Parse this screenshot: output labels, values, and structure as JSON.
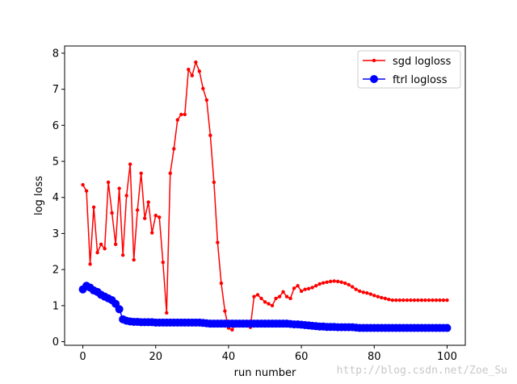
{
  "chart_data": {
    "type": "line",
    "xlabel": "run number",
    "ylabel": "log loss",
    "xlim": [
      -5,
      105
    ],
    "ylim": [
      -0.1,
      8.2
    ],
    "xticks": [
      0,
      20,
      40,
      60,
      80,
      100
    ],
    "yticks": [
      0,
      1,
      2,
      3,
      4,
      5,
      6,
      7,
      8
    ],
    "grid": false,
    "legend_position": "top-right",
    "series": [
      {
        "name": "sgd logloss",
        "color": "#ff0000",
        "marker": "small-dot",
        "x": [
          0,
          1,
          2,
          3,
          4,
          5,
          6,
          7,
          8,
          9,
          10,
          11,
          12,
          13,
          14,
          15,
          16,
          17,
          18,
          19,
          20,
          21,
          22,
          23,
          24,
          25,
          26,
          27,
          28,
          29,
          30,
          31,
          32,
          33,
          34,
          35,
          36,
          37,
          38,
          39,
          40,
          41,
          42,
          43,
          44,
          45,
          46,
          47,
          48,
          49,
          50,
          51,
          52,
          53,
          54,
          55,
          56,
          57,
          58,
          59,
          60,
          61,
          62,
          63,
          64,
          65,
          66,
          67,
          68,
          69,
          70,
          71,
          72,
          73,
          74,
          75,
          76,
          77,
          78,
          79,
          80,
          81,
          82,
          83,
          84,
          85,
          86,
          87,
          88,
          89,
          90,
          91,
          92,
          93,
          94,
          95,
          96,
          97,
          98,
          99,
          100
        ],
        "y": [
          4.35,
          4.18,
          2.15,
          3.73,
          2.47,
          2.7,
          2.58,
          4.42,
          3.57,
          2.7,
          4.25,
          2.4,
          4.05,
          4.92,
          2.27,
          3.65,
          4.67,
          3.42,
          3.87,
          3.02,
          3.5,
          3.45,
          2.2,
          0.8,
          4.67,
          5.35,
          6.15,
          6.3,
          6.3,
          7.55,
          7.38,
          7.75,
          7.5,
          7.02,
          6.7,
          5.72,
          4.42,
          2.75,
          1.62,
          0.85,
          0.38,
          0.33,
          0.5,
          0.52,
          0.45,
          0.48,
          0.4,
          1.25,
          1.3,
          1.2,
          1.1,
          1.05,
          1.0,
          1.2,
          1.25,
          1.38,
          1.25,
          1.2,
          1.48,
          1.55,
          1.4,
          1.45,
          1.47,
          1.5,
          1.55,
          1.6,
          1.63,
          1.65,
          1.67,
          1.68,
          1.67,
          1.65,
          1.62,
          1.58,
          1.52,
          1.45,
          1.4,
          1.37,
          1.35,
          1.32,
          1.28,
          1.25,
          1.22,
          1.2,
          1.17,
          1.15,
          1.15,
          1.15,
          1.15,
          1.15,
          1.15,
          1.15,
          1.15,
          1.15,
          1.15,
          1.15,
          1.15,
          1.15,
          1.15,
          1.15,
          1.15
        ]
      },
      {
        "name": "ftrl logloss",
        "color": "#0000ff",
        "marker": "large-dot",
        "x": [
          0,
          1,
          2,
          3,
          4,
          5,
          6,
          7,
          8,
          9,
          10,
          11,
          12,
          13,
          14,
          15,
          16,
          17,
          18,
          19,
          20,
          21,
          22,
          23,
          24,
          25,
          26,
          27,
          28,
          29,
          30,
          31,
          32,
          33,
          34,
          35,
          36,
          37,
          38,
          39,
          40,
          41,
          42,
          43,
          44,
          45,
          46,
          47,
          48,
          49,
          50,
          51,
          52,
          53,
          54,
          55,
          56,
          57,
          58,
          59,
          60,
          61,
          62,
          63,
          64,
          65,
          66,
          67,
          68,
          69,
          70,
          71,
          72,
          73,
          74,
          75,
          76,
          77,
          78,
          79,
          80,
          81,
          82,
          83,
          84,
          85,
          86,
          87,
          88,
          89,
          90,
          91,
          92,
          93,
          94,
          95,
          96,
          97,
          98,
          99,
          100
        ],
        "y": [
          1.45,
          1.55,
          1.5,
          1.42,
          1.38,
          1.3,
          1.25,
          1.2,
          1.15,
          1.05,
          0.9,
          0.62,
          0.58,
          0.56,
          0.55,
          0.55,
          0.54,
          0.54,
          0.54,
          0.54,
          0.53,
          0.53,
          0.53,
          0.53,
          0.53,
          0.53,
          0.53,
          0.53,
          0.53,
          0.53,
          0.53,
          0.53,
          0.53,
          0.52,
          0.51,
          0.5,
          0.5,
          0.5,
          0.5,
          0.5,
          0.5,
          0.5,
          0.5,
          0.5,
          0.5,
          0.5,
          0.5,
          0.5,
          0.5,
          0.5,
          0.5,
          0.5,
          0.5,
          0.5,
          0.5,
          0.5,
          0.5,
          0.49,
          0.48,
          0.48,
          0.47,
          0.46,
          0.45,
          0.44,
          0.43,
          0.42,
          0.42,
          0.41,
          0.41,
          0.41,
          0.4,
          0.4,
          0.4,
          0.4,
          0.4,
          0.39,
          0.38,
          0.38,
          0.38,
          0.38,
          0.38,
          0.38,
          0.38,
          0.38,
          0.38,
          0.38,
          0.38,
          0.38,
          0.38,
          0.38,
          0.38,
          0.38,
          0.38,
          0.38,
          0.38,
          0.38,
          0.38,
          0.38,
          0.38,
          0.38,
          0.38
        ]
      }
    ]
  },
  "watermark": "http://blog.csdn.net/Zoe_Su"
}
